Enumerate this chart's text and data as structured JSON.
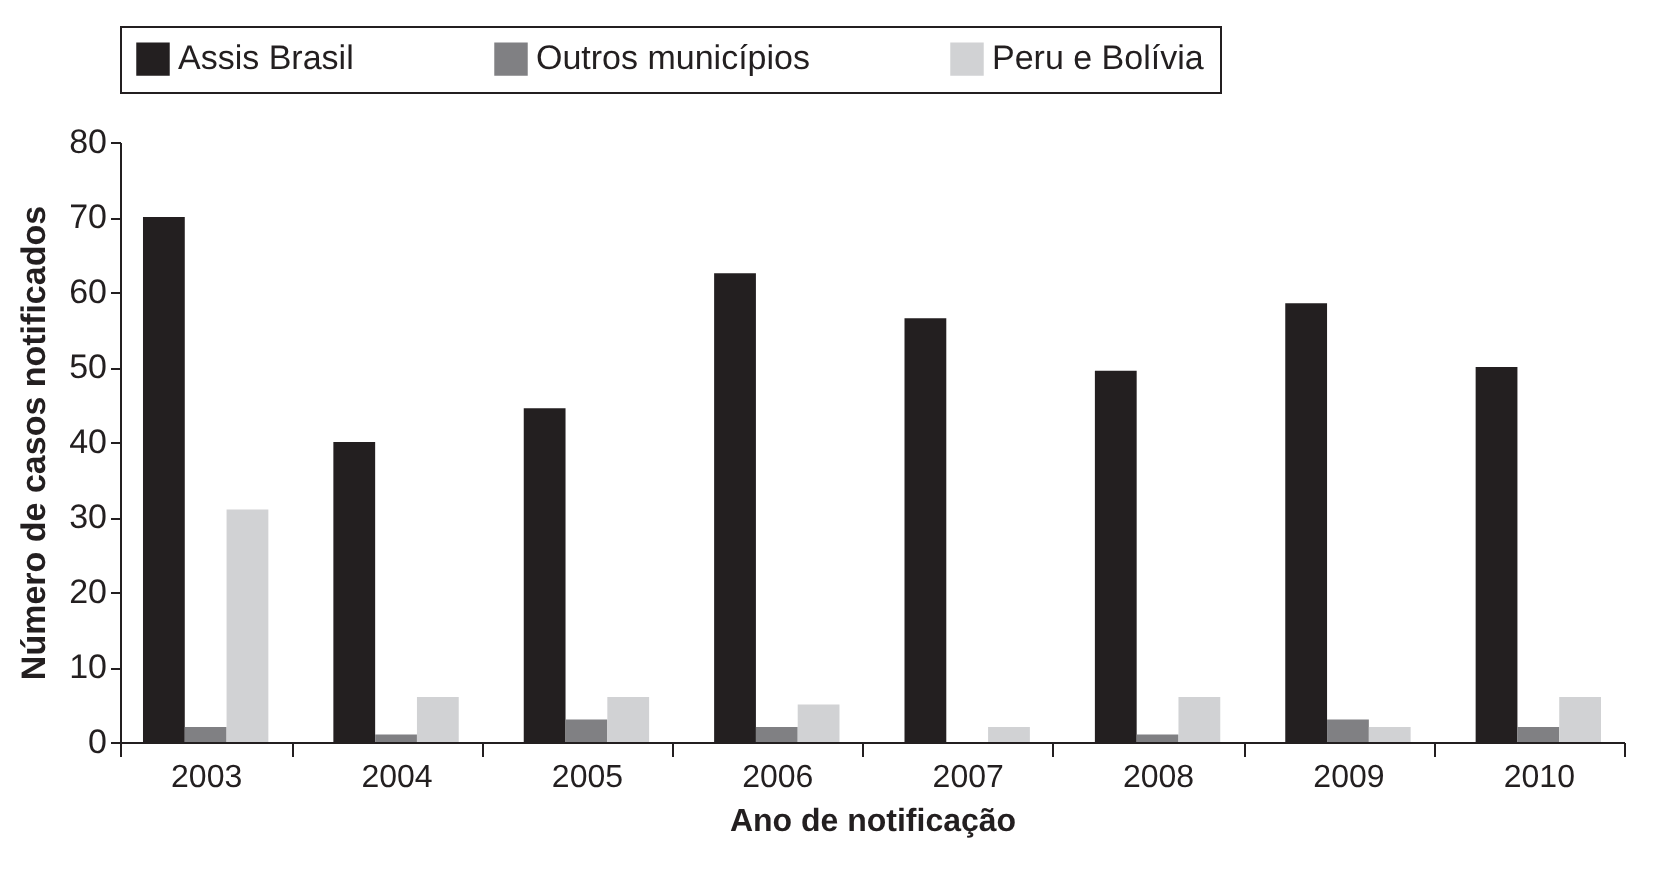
{
  "chart_data": {
    "type": "bar",
    "xlabel": "Ano de notificação",
    "ylabel": "Número de casos notificados",
    "categories": [
      "2003",
      "2004",
      "2005",
      "2006",
      "2007",
      "2008",
      "2009",
      "2010"
    ],
    "series": [
      {
        "name": "Assis Brasil",
        "color": "#231f20",
        "values": [
          70,
          40,
          44.5,
          62.5,
          56.5,
          49.5,
          58.5,
          50
        ]
      },
      {
        "name": "Outros municípios",
        "color": "#808083",
        "values": [
          2,
          1,
          3,
          2,
          0,
          1,
          3,
          2
        ]
      },
      {
        "name": "Peru e Bolívia",
        "color": "#d1d2d4",
        "values": [
          31,
          6,
          6,
          5,
          2,
          6,
          2,
          6
        ]
      }
    ],
    "ylim": [
      0,
      80
    ],
    "yticks": [
      0,
      10,
      20,
      30,
      40,
      50,
      60,
      70,
      80
    ],
    "grid": false,
    "legend": "top"
  }
}
